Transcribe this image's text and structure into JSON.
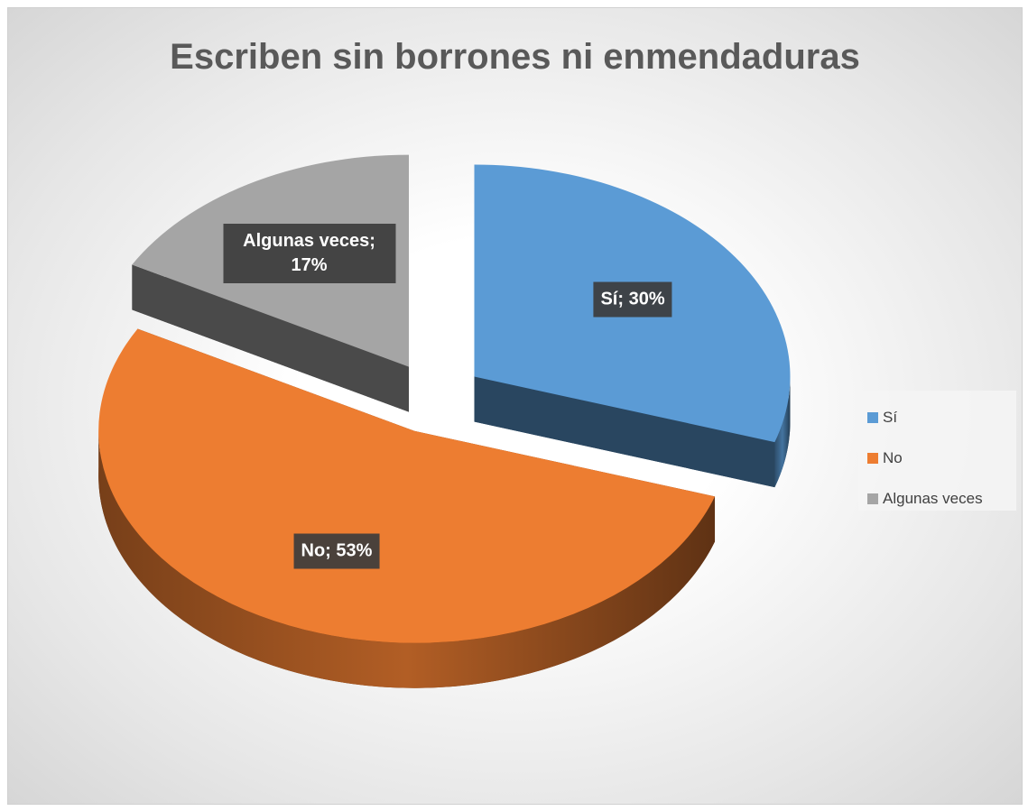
{
  "chart_data": {
    "type": "pie",
    "title": "Escriben sin borrones ni enmendaduras",
    "categories": [
      "Sí",
      "No",
      "Algunas veces"
    ],
    "values": [
      30,
      53,
      17
    ],
    "value_labels": [
      "Sí; 30%",
      "No; 53%",
      "Algunas veces; 17%"
    ],
    "colors": [
      "#5b9bd5",
      "#ed7d31",
      "#a5a5a5"
    ],
    "legend": "right"
  }
}
